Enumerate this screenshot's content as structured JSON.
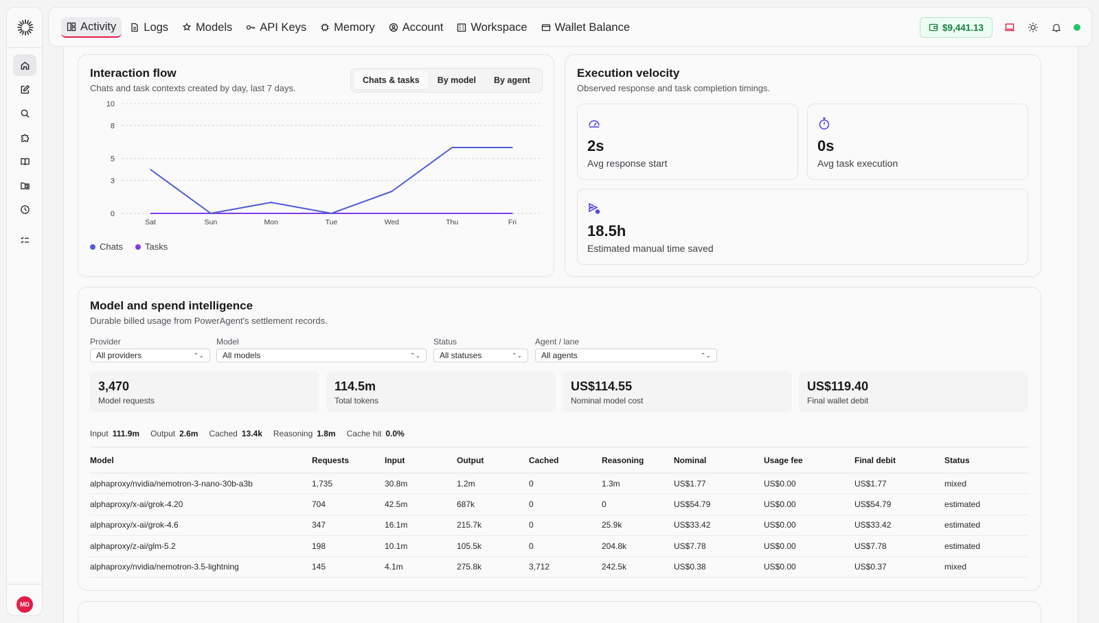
{
  "sidebar": {
    "items": [
      {
        "icon": "home-icon"
      },
      {
        "icon": "edit-icon"
      },
      {
        "icon": "search-icon"
      },
      {
        "icon": "puzzle-icon"
      },
      {
        "icon": "book-icon"
      },
      {
        "icon": "folder-icon"
      },
      {
        "icon": "clock-icon"
      },
      {
        "icon": "checklist-icon"
      }
    ],
    "avatar": "MD"
  },
  "nav": {
    "items": [
      {
        "label": "Activity",
        "icon": "dashboard-icon"
      },
      {
        "label": "Logs",
        "icon": "document-icon"
      },
      {
        "label": "Models",
        "icon": "models-icon"
      },
      {
        "label": "API Keys",
        "icon": "key-icon"
      },
      {
        "label": "Memory",
        "icon": "chip-icon"
      },
      {
        "label": "Account",
        "icon": "user-circle-icon"
      },
      {
        "label": "Workspace",
        "icon": "building-icon"
      },
      {
        "label": "Wallet Balance",
        "icon": "card-icon"
      }
    ],
    "wallet": "$9,441.13"
  },
  "interaction": {
    "title": "Interaction flow",
    "subtitle": "Chats and task contexts created by day, last 7 days.",
    "tabs": [
      "Chats & tasks",
      "By model",
      "By agent"
    ],
    "legend": [
      "Chats",
      "Tasks"
    ]
  },
  "chart_data": {
    "type": "line",
    "x": [
      "Sat",
      "Sun",
      "Mon",
      "Tue",
      "Wed",
      "Thu",
      "Fri"
    ],
    "yticks": [
      0,
      3,
      5,
      8,
      10
    ],
    "ylim": [
      0,
      10
    ],
    "grid": true,
    "legend_placement": "bottom-left",
    "series": [
      {
        "name": "Chats",
        "values": [
          4,
          0,
          1,
          0,
          2,
          6,
          6
        ],
        "color": "#4f5bd5"
      },
      {
        "name": "Tasks",
        "values": [
          0,
          0,
          0,
          0,
          0,
          0,
          0
        ],
        "color": "#7c3aed"
      }
    ]
  },
  "velocity": {
    "title": "Execution velocity",
    "subtitle": "Observed response and task completion timings.",
    "stats": [
      {
        "value": "2s",
        "label": "Avg response start",
        "icon": "gauge-icon"
      },
      {
        "value": "0s",
        "label": "Avg task execution",
        "icon": "stopwatch-icon"
      },
      {
        "value": "18.5h",
        "label": "Estimated manual time saved",
        "icon": "send-clock-icon"
      }
    ]
  },
  "spend": {
    "title": "Model and spend intelligence",
    "subtitle": "Durable billed usage from PowerAgent's settlement records.",
    "filters": [
      {
        "label": "Provider",
        "value": "All providers"
      },
      {
        "label": "Model",
        "value": "All models"
      },
      {
        "label": "Status",
        "value": "All statuses"
      },
      {
        "label": "Agent / lane",
        "value": "All agents"
      }
    ],
    "kpis": [
      {
        "value": "3,470",
        "label": "Model requests"
      },
      {
        "value": "114.5m",
        "label": "Total tokens"
      },
      {
        "value": "US$114.55",
        "label": "Nominal model cost"
      },
      {
        "value": "US$119.40",
        "label": "Final wallet debit"
      }
    ],
    "tokens": [
      {
        "label": "Input",
        "value": "111.9m"
      },
      {
        "label": "Output",
        "value": "2.6m"
      },
      {
        "label": "Cached",
        "value": "13.4k"
      },
      {
        "label": "Reasoning",
        "value": "1.8m"
      },
      {
        "label": "Cache hit",
        "value": "0.0%"
      }
    ],
    "columns": [
      "Model",
      "Requests",
      "Input",
      "Output",
      "Cached",
      "Reasoning",
      "Nominal",
      "Usage fee",
      "Final debit",
      "Status"
    ],
    "rows": [
      [
        "alphaproxy/nvidia/nemotron-3-nano-30b-a3b",
        "1,735",
        "30.8m",
        "1.2m",
        "0",
        "1.3m",
        "US$1.77",
        "US$0.00",
        "US$1.77",
        "mixed"
      ],
      [
        "alphaproxy/x-ai/grok-4.20",
        "704",
        "42.5m",
        "687k",
        "0",
        "0",
        "US$54.79",
        "US$0.00",
        "US$54.79",
        "estimated"
      ],
      [
        "alphaproxy/x-ai/grok-4.6",
        "347",
        "16.1m",
        "215.7k",
        "0",
        "25.9k",
        "US$33.42",
        "US$0.00",
        "US$33.42",
        "estimated"
      ],
      [
        "alphaproxy/z-ai/glm-5.2",
        "198",
        "10.1m",
        "105.5k",
        "0",
        "204.8k",
        "US$7.78",
        "US$0.00",
        "US$7.78",
        "estimated"
      ],
      [
        "alphaproxy/nvidia/nemotron-3.5-lightning",
        "145",
        "4.1m",
        "275.8k",
        "3,712",
        "242.5k",
        "US$0.38",
        "US$0.00",
        "US$0.37",
        "mixed"
      ]
    ]
  }
}
